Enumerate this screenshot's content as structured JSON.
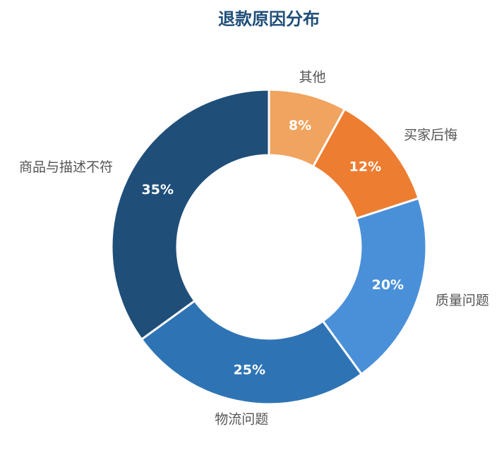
{
  "chart_data": {
    "type": "donut",
    "title": "退款原因分布",
    "categories": [
      "其他",
      "买家后悔",
      "质量问题",
      "物流问题",
      "商品与描述不符"
    ],
    "values": [
      8,
      12,
      20,
      25,
      35
    ],
    "value_labels": [
      "8%",
      "12%",
      "20%",
      "25%",
      "35%"
    ],
    "colors": [
      "#f0a45f",
      "#ed7d31",
      "#4a90d9",
      "#2e74b5",
      "#1f4e79"
    ]
  }
}
